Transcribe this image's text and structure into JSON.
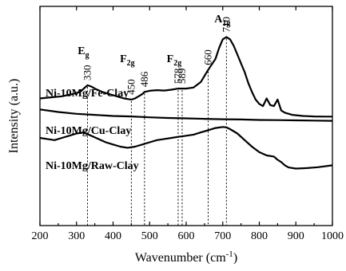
{
  "chart_data": {
    "type": "line",
    "title": "",
    "xlabel": "Wavenumber",
    "xlabel_unit": "(cm",
    "xlabel_unit_sup": "-1",
    "xlabel_unit_close": ")",
    "ylabel": "Intensity (a.u.)",
    "xlim": [
      200,
      1000
    ],
    "ylim": [
      0,
      1
    ],
    "x_ticks": [
      200,
      300,
      400,
      500,
      600,
      700,
      800,
      900,
      1000
    ],
    "y_tick_labels": "none",
    "grid": false,
    "legend": "none (series labelled inline, left)",
    "series": [
      {
        "name": "Ni-10Mg/Fe-Clay",
        "x": [
          200,
          230,
          260,
          290,
          310,
          320,
          330,
          340,
          350,
          370,
          390,
          410,
          430,
          450,
          460,
          470,
          480,
          486,
          500,
          520,
          540,
          560,
          578,
          589,
          600,
          620,
          640,
          660,
          680,
          690,
          700,
          710,
          720,
          730,
          740,
          750,
          760,
          770,
          780,
          790,
          800,
          810,
          820,
          830,
          840,
          850,
          860,
          870,
          890,
          920,
          950,
          980,
          1000
        ],
        "y": [
          0.58,
          0.585,
          0.59,
          0.6,
          0.61,
          0.625,
          0.64,
          0.635,
          0.625,
          0.61,
          0.6,
          0.59,
          0.58,
          0.575,
          0.58,
          0.59,
          0.6,
          0.61,
          0.615,
          0.618,
          0.616,
          0.62,
          0.625,
          0.625,
          0.625,
          0.63,
          0.655,
          0.71,
          0.76,
          0.81,
          0.85,
          0.86,
          0.85,
          0.82,
          0.78,
          0.74,
          0.7,
          0.65,
          0.61,
          0.575,
          0.555,
          0.545,
          0.58,
          0.55,
          0.545,
          0.575,
          0.525,
          0.515,
          0.505,
          0.5,
          0.498,
          0.497,
          0.497
        ]
      },
      {
        "name": "Ni-10Mg/Cu-Clay",
        "x": [
          200,
          250,
          300,
          350,
          400,
          450,
          500,
          550,
          600,
          650,
          700,
          750,
          800,
          850,
          900,
          950,
          1000
        ],
        "y": [
          0.53,
          0.518,
          0.51,
          0.505,
          0.5,
          0.498,
          0.494,
          0.491,
          0.489,
          0.487,
          0.485,
          0.484,
          0.482,
          0.481,
          0.48,
          0.479,
          0.478
        ]
      },
      {
        "name": "Ni-10Mg/Raw-Clay",
        "x": [
          200,
          220,
          240,
          260,
          280,
          300,
          320,
          340,
          360,
          380,
          400,
          420,
          440,
          460,
          480,
          500,
          520,
          540,
          560,
          580,
          600,
          620,
          640,
          660,
          680,
          700,
          710,
          720,
          740,
          760,
          780,
          800,
          820,
          840,
          850,
          860,
          870,
          880,
          900,
          930,
          960,
          1000
        ],
        "y": [
          0.4,
          0.395,
          0.39,
          0.4,
          0.41,
          0.42,
          0.425,
          0.41,
          0.395,
          0.38,
          0.37,
          0.36,
          0.355,
          0.36,
          0.37,
          0.38,
          0.39,
          0.395,
          0.4,
          0.405,
          0.41,
          0.415,
          0.425,
          0.435,
          0.445,
          0.45,
          0.448,
          0.44,
          0.42,
          0.39,
          0.36,
          0.335,
          0.32,
          0.315,
          0.3,
          0.29,
          0.275,
          0.265,
          0.26,
          0.262,
          0.266,
          0.275
        ]
      }
    ],
    "reference_lines": [
      330,
      450,
      486,
      578,
      589,
      660,
      710
    ],
    "mode_labels": [
      {
        "text": "E",
        "sub": "g",
        "x": 330
      },
      {
        "text": "F",
        "sub": "2g",
        "x": 450
      },
      {
        "text": "F",
        "sub": "2g",
        "x": 578
      },
      {
        "text": "A",
        "sub": "1g",
        "x": 710
      }
    ]
  }
}
